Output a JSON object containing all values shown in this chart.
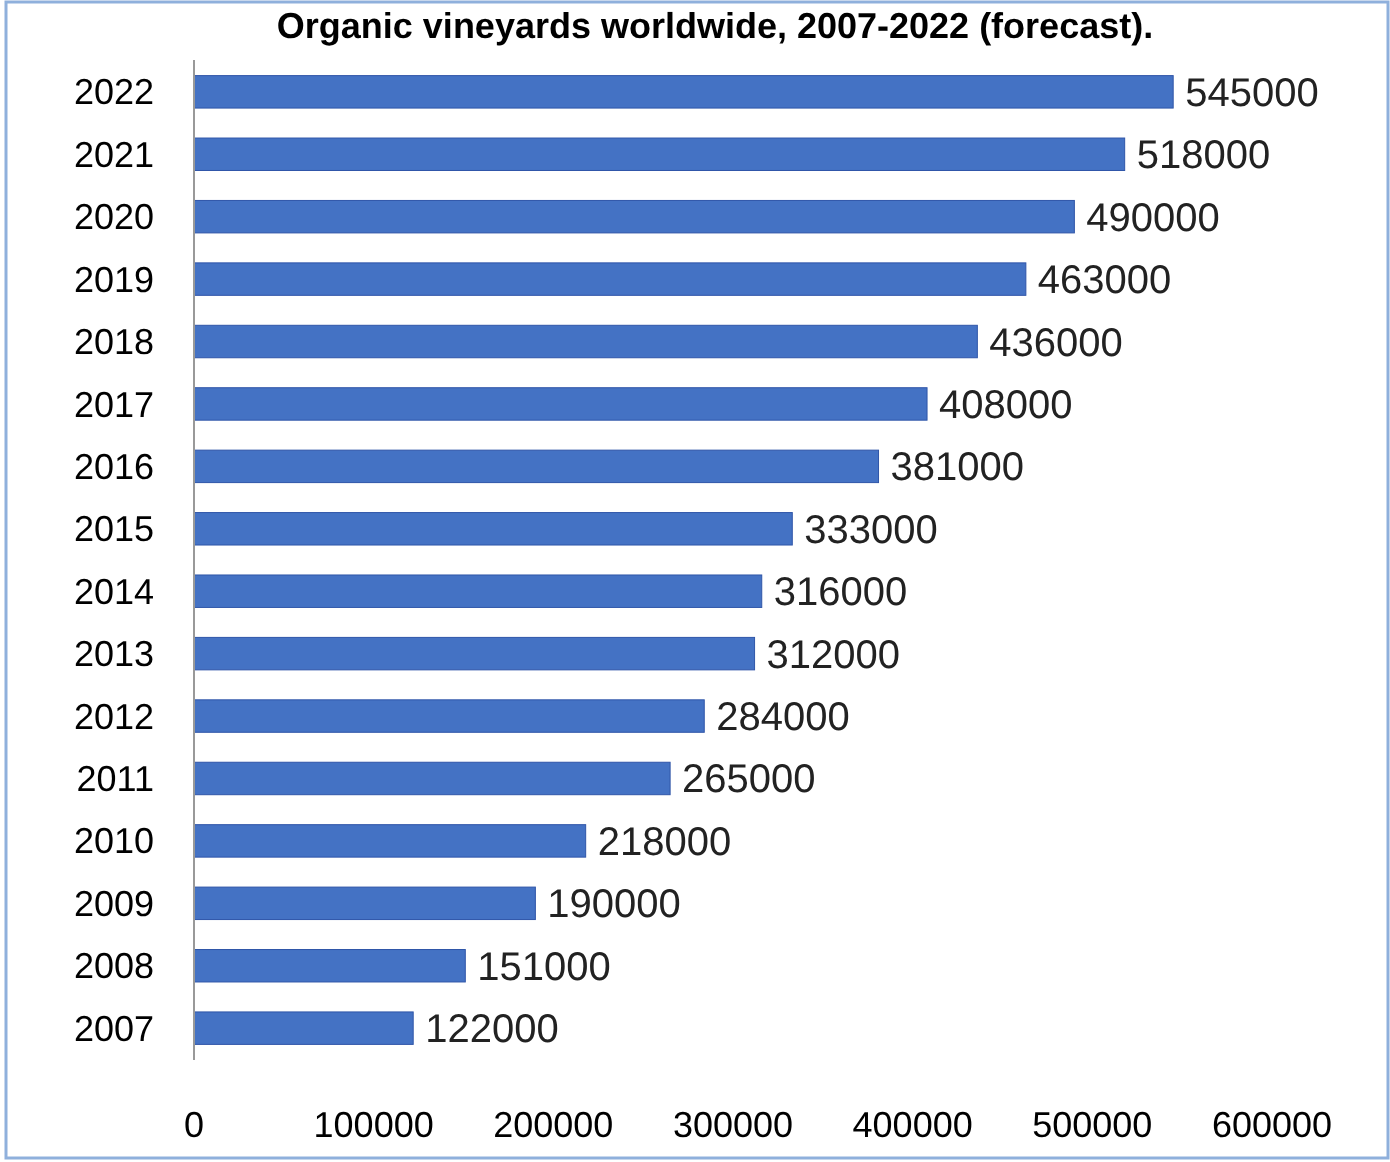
{
  "chart_data": {
    "type": "bar",
    "orientation": "horizontal",
    "title": "Organic vineyards worldwide, 2007-2022 (forecast).",
    "categories": [
      "2022",
      "2021",
      "2020",
      "2019",
      "2018",
      "2017",
      "2016",
      "2015",
      "2014",
      "2013",
      "2012",
      "2011",
      "2010",
      "2009",
      "2008",
      "2007"
    ],
    "values": [
      545000,
      518000,
      490000,
      463000,
      436000,
      408000,
      381000,
      333000,
      316000,
      312000,
      284000,
      265000,
      218000,
      190000,
      151000,
      122000
    ],
    "color": "#4472c4",
    "xlim": [
      0,
      600000
    ],
    "xticks": [
      0,
      100000,
      200000,
      300000,
      400000,
      500000,
      600000
    ],
    "data_labels": true,
    "grid": false
  }
}
